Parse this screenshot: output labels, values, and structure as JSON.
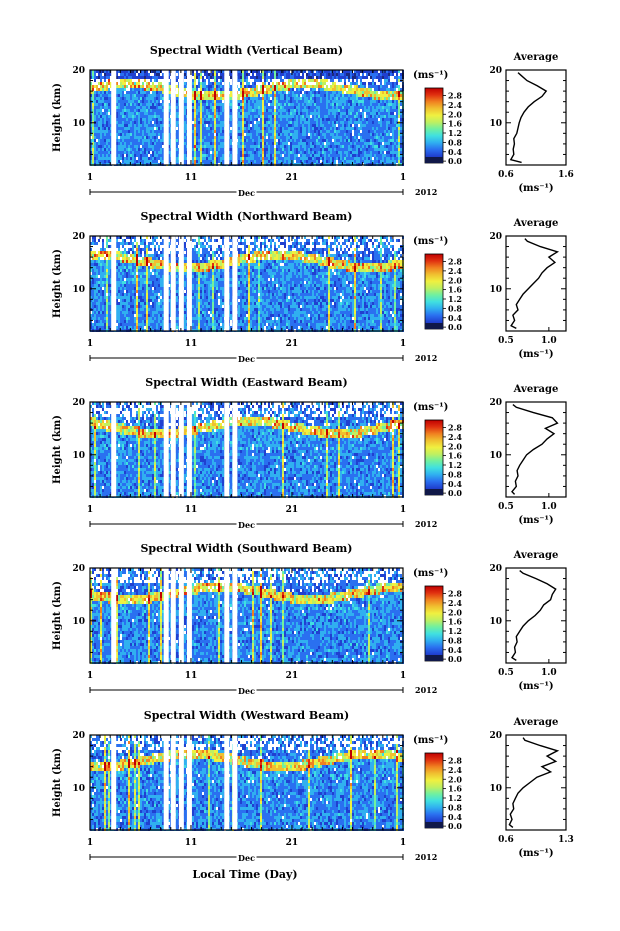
{
  "figure": {
    "xlabel": "Local Time (Day)",
    "month_label": "Dec",
    "year_label": "2012",
    "x_tick_labels": [
      "1",
      "11",
      "21",
      "1"
    ],
    "y_tick_labels": [
      "10",
      "20"
    ],
    "ylabel": "Height (km)",
    "units": "(ms⁻¹)",
    "avg_title": "Average",
    "colorbar_ticks": [
      "0.0",
      "0.4",
      "0.8",
      "1.2",
      "1.6",
      "2.0",
      "2.4",
      "2.8"
    ],
    "colors": [
      "#1a2a80",
      "#2040d0",
      "#2a70f0",
      "#30b0f0",
      "#40e0e0",
      "#70f0a0",
      "#c0f060",
      "#f0f040",
      "#f0c030",
      "#f08020",
      "#e03010",
      "#c00000"
    ]
  },
  "chart_data": [
    {
      "type": "heatmap",
      "title": "Spectral Width (Vertical Beam)",
      "x_range": [
        1,
        32
      ],
      "y_range": [
        2,
        20
      ],
      "color_range": [
        0,
        3.0
      ],
      "gaps_day": [
        3.1,
        8.3,
        9.0,
        9.8,
        10.6,
        14.3,
        15.1
      ],
      "avg_profile": {
        "title": "Average",
        "xlim": [
          0.6,
          1.6
        ],
        "x_ticks": [
          "0.6",
          "1.6"
        ],
        "xlabel": "(ms⁻¹)",
        "height_km": [
          2.5,
          3,
          4,
          5,
          6,
          7,
          8,
          9,
          10,
          11,
          12,
          13,
          14,
          15,
          16,
          17,
          18,
          19,
          19.5
        ],
        "values": [
          0.86,
          0.68,
          0.73,
          0.72,
          0.74,
          0.73,
          0.78,
          0.8,
          0.82,
          0.85,
          0.9,
          0.97,
          1.07,
          1.2,
          1.27,
          1.12,
          0.95,
          0.85,
          0.8
        ]
      }
    },
    {
      "type": "heatmap",
      "title": "Spectral Width (Northward Beam)",
      "x_range": [
        1,
        32
      ],
      "y_range": [
        2,
        20
      ],
      "color_range": [
        0,
        3.0
      ],
      "gaps_day": [
        3.1,
        8.3,
        9.0,
        9.8,
        10.6,
        14.3,
        15.1
      ],
      "avg_profile": {
        "title": "Average",
        "xlim": [
          0.5,
          1.2
        ],
        "x_ticks": [
          "0.5",
          "1.0"
        ],
        "xlabel": "(ms⁻¹)",
        "height_km": [
          2.5,
          3,
          4,
          5,
          6,
          7,
          8,
          9,
          10,
          11,
          12,
          13,
          14,
          15,
          16,
          17,
          18,
          19,
          19.5
        ],
        "values": [
          0.62,
          0.56,
          0.6,
          0.58,
          0.64,
          0.62,
          0.66,
          0.7,
          0.76,
          0.82,
          0.88,
          0.92,
          0.98,
          1.07,
          1.0,
          1.1,
          0.9,
          0.75,
          0.72
        ]
      }
    },
    {
      "type": "heatmap",
      "title": "Spectral Width (Eastward Beam)",
      "x_range": [
        1,
        32
      ],
      "y_range": [
        2,
        20
      ],
      "color_range": [
        0,
        3.0
      ],
      "gaps_day": [
        3.1,
        8.3,
        9.0,
        9.8,
        10.6,
        14.3,
        15.1
      ],
      "avg_profile": {
        "title": "Average",
        "xlim": [
          0.5,
          1.2
        ],
        "x_ticks": [
          "0.5",
          "1.0"
        ],
        "xlabel": "(ms⁻¹)",
        "height_km": [
          2.5,
          3,
          4,
          5,
          6,
          7,
          8,
          9,
          10,
          11,
          12,
          13,
          14,
          15,
          16,
          17,
          18,
          19,
          19.5
        ],
        "values": [
          0.6,
          0.57,
          0.62,
          0.61,
          0.64,
          0.63,
          0.66,
          0.7,
          0.74,
          0.82,
          0.92,
          0.98,
          1.06,
          0.96,
          1.1,
          1.04,
          0.82,
          0.62,
          0.58
        ]
      }
    },
    {
      "type": "heatmap",
      "title": "Spectral Width (Southward Beam)",
      "x_range": [
        1,
        32
      ],
      "y_range": [
        2,
        20
      ],
      "color_range": [
        0,
        3.0
      ],
      "gaps_day": [
        3.1,
        8.3,
        9.0,
        9.8,
        10.6,
        14.3,
        15.1
      ],
      "avg_profile": {
        "title": "Average",
        "xlim": [
          0.5,
          1.2
        ],
        "x_ticks": [
          "0.5",
          "1.0"
        ],
        "xlabel": "(ms⁻¹)",
        "height_km": [
          2.5,
          3,
          4,
          5,
          6,
          7,
          8,
          9,
          10,
          11,
          12,
          13,
          14,
          15,
          16,
          17,
          18,
          19,
          19.5
        ],
        "values": [
          0.62,
          0.57,
          0.61,
          0.6,
          0.63,
          0.62,
          0.66,
          0.7,
          0.76,
          0.84,
          0.9,
          0.94,
          1.02,
          1.04,
          1.08,
          0.98,
          0.85,
          0.7,
          0.66
        ]
      }
    },
    {
      "type": "heatmap",
      "title": "Spectral Width (Westward Beam)",
      "x_range": [
        1,
        32
      ],
      "y_range": [
        2,
        20
      ],
      "color_range": [
        0,
        3.0
      ],
      "gaps_day": [
        3.1,
        8.3,
        9.0,
        9.8,
        10.6,
        14.3,
        15.1
      ],
      "avg_profile": {
        "title": "Average",
        "xlim": [
          0.6,
          1.3
        ],
        "x_ticks": [
          "0.6",
          "1.3"
        ],
        "xlabel": "(ms⁻¹)",
        "height_km": [
          2.5,
          3,
          4,
          5,
          6,
          7,
          8,
          9,
          10,
          11,
          12,
          13,
          14,
          15,
          16,
          17,
          18,
          19,
          19.5
        ],
        "values": [
          0.68,
          0.64,
          0.67,
          0.65,
          0.69,
          0.68,
          0.71,
          0.74,
          0.8,
          0.88,
          0.96,
          1.12,
          1.02,
          1.18,
          1.08,
          1.2,
          1.0,
          0.82,
          0.8
        ]
      }
    }
  ]
}
